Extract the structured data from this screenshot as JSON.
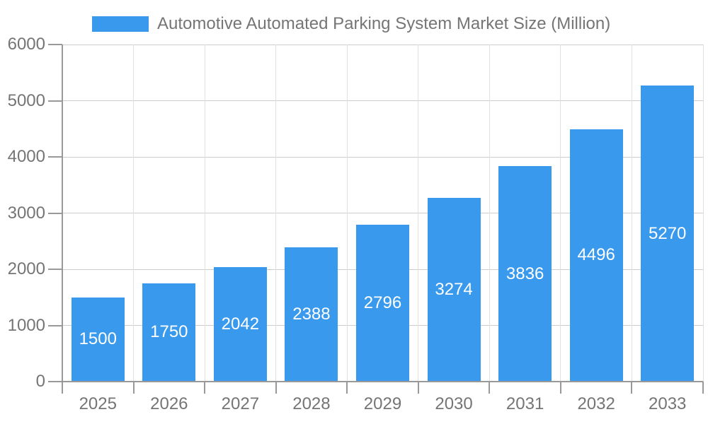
{
  "legend": {
    "label": "Automotive Automated Parking System Market Size (Million)"
  },
  "chart_data": {
    "type": "bar",
    "title": "Automotive Automated Parking System Market Size (Million)",
    "categories": [
      "2025",
      "2026",
      "2027",
      "2028",
      "2029",
      "2030",
      "2031",
      "2032",
      "2033"
    ],
    "values": [
      1500,
      1750,
      2042,
      2388,
      2796,
      3274,
      3836,
      4496,
      5270
    ],
    "xlabel": "",
    "ylabel": "",
    "ylim": [
      0,
      6000
    ],
    "yticks": [
      0,
      1000,
      2000,
      3000,
      4000,
      5000,
      6000
    ],
    "grid": true,
    "legend_position": "top",
    "value_labels": "inside-center",
    "colors": {
      "bar": "#3999ED",
      "value_label": "#FFFFFF",
      "axis_text": "#757575",
      "grid_line_horizontal": "#CCCCCC",
      "grid_line_vertical": "#E0E0E0",
      "axis_line": "#999999",
      "background": "#FFFFFF"
    }
  }
}
